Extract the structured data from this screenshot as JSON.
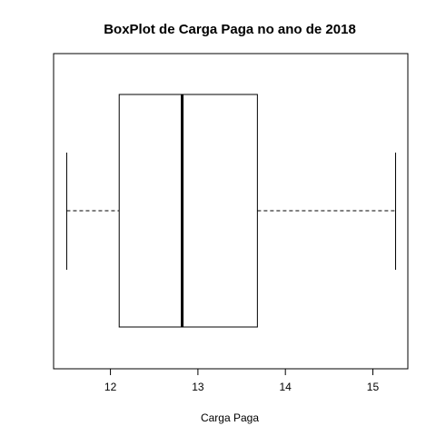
{
  "chart_data": {
    "type": "boxplot",
    "orientation": "horizontal",
    "title": "BoxPlot de Carga Paga no ano de 2018",
    "xlabel": "Carga Paga",
    "ylabel": "",
    "xlim": [
      11.35,
      15.4
    ],
    "ticks": [
      12,
      13,
      14,
      15
    ],
    "tick_labels": [
      "12",
      "13",
      "14",
      "15"
    ],
    "box": {
      "min": 11.5,
      "q1": 12.1,
      "median": 12.82,
      "q3": 13.68,
      "max": 15.26
    },
    "whisker_style": "dashed",
    "colors": {
      "box_fill": "#ffffff",
      "stroke": "#000000"
    }
  }
}
